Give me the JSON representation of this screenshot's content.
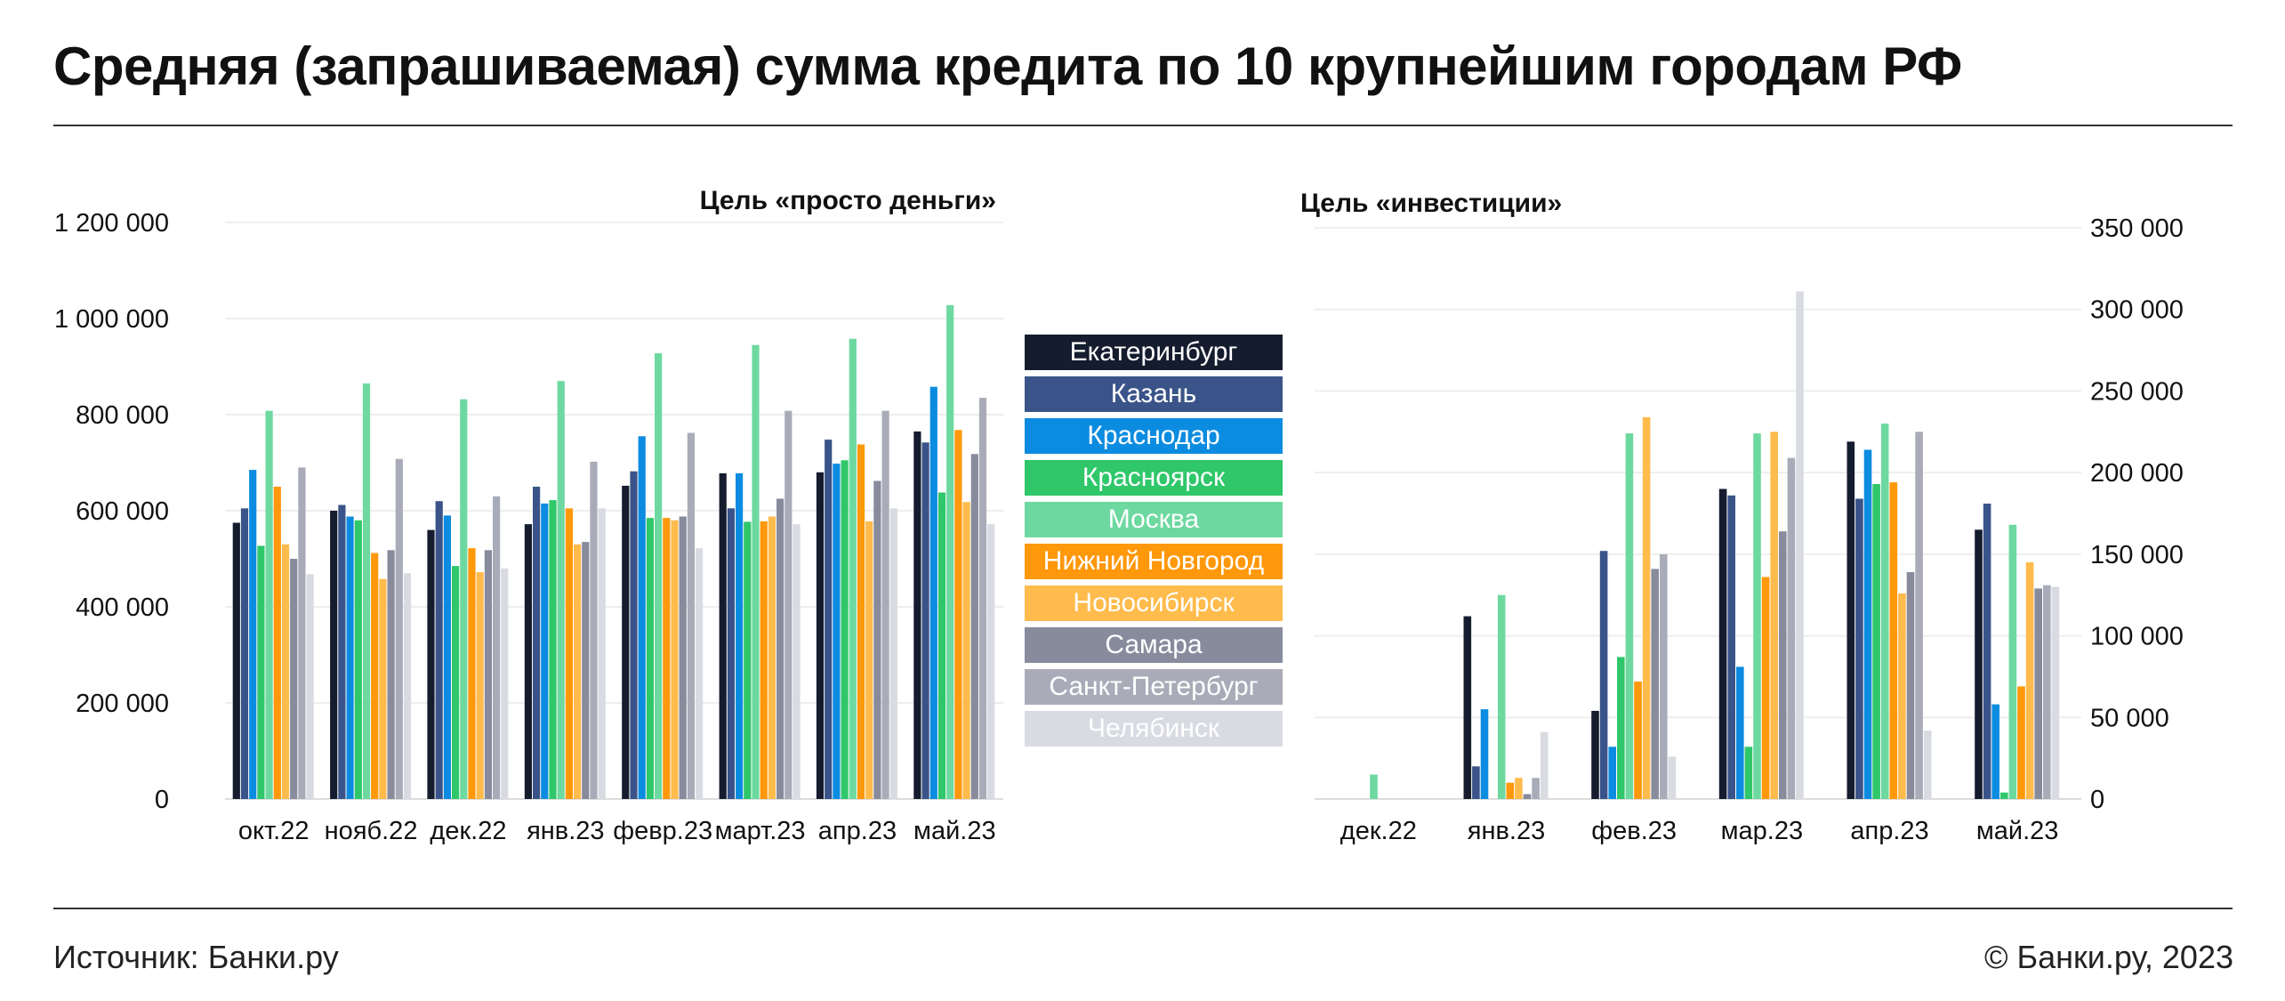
{
  "title": "Средняя (запрашиваемая) сумма кредита по 10 крупнейшим городам РФ",
  "source": "Источник: Банки.ру",
  "copyright": "© Банки.ру, 2023",
  "legend": [
    {
      "name": "Екатеринбург",
      "color": "#141c2e"
    },
    {
      "name": "Казань",
      "color": "#3a5489"
    },
    {
      "name": "Краснодар",
      "color": "#0c8ce0"
    },
    {
      "name": "Красноярск",
      "color": "#2fc76a"
    },
    {
      "name": "Москва",
      "color": "#6dd9a0"
    },
    {
      "name": "Нижний Новгород",
      "color": "#ff980a"
    },
    {
      "name": "Новосибирск",
      "color": "#ffbb4c"
    },
    {
      "name": "Самара",
      "color": "#878b9c"
    },
    {
      "name": "Санкт-Петербург",
      "color": "#a9acb8"
    },
    {
      "name": "Челябинск",
      "color": "#d9dbe2"
    }
  ],
  "chart_data": [
    {
      "type": "bar",
      "title": "Цель «просто деньги»",
      "categories": [
        "окт.22",
        "нояб.22",
        "дек.22",
        "янв.23",
        "февр.23",
        "март.23",
        "апр.23",
        "май.23"
      ],
      "ylim": [
        0,
        1200000
      ],
      "yticks": [
        "0",
        "200 000",
        "400 000",
        "600 000",
        "800 000",
        "1 000 000",
        "1 200 000"
      ],
      "grid": true,
      "series": [
        {
          "name": "Екатеринбург",
          "values": [
            575000,
            600000,
            560000,
            572000,
            652000,
            678000,
            680000,
            765000
          ]
        },
        {
          "name": "Казань",
          "values": [
            605000,
            612000,
            620000,
            650000,
            682000,
            605000,
            748000,
            742000
          ]
        },
        {
          "name": "Краснодар",
          "values": [
            685000,
            588000,
            590000,
            615000,
            755000,
            678000,
            698000,
            858000
          ]
        },
        {
          "name": "Красноярск",
          "values": [
            527000,
            580000,
            485000,
            622000,
            585000,
            577000,
            705000,
            638000
          ]
        },
        {
          "name": "Москва",
          "values": [
            808000,
            865000,
            832000,
            870000,
            928000,
            945000,
            958000,
            1028000
          ]
        },
        {
          "name": "Нижний Новгород",
          "values": [
            650000,
            512000,
            522000,
            605000,
            585000,
            578000,
            738000,
            768000
          ]
        },
        {
          "name": "Новосибирск",
          "values": [
            530000,
            458000,
            472000,
            530000,
            580000,
            588000,
            578000,
            618000
          ]
        },
        {
          "name": "Самара",
          "values": [
            500000,
            518000,
            518000,
            535000,
            588000,
            625000,
            662000,
            718000
          ]
        },
        {
          "name": "Санкт-Петербург",
          "values": [
            690000,
            708000,
            630000,
            702000,
            762000,
            808000,
            808000,
            835000
          ]
        },
        {
          "name": "Челябинск",
          "values": [
            468000,
            470000,
            480000,
            605000,
            522000,
            572000,
            605000,
            572000
          ]
        }
      ]
    },
    {
      "type": "bar",
      "title": "Цель «инвестиции»",
      "categories": [
        "дек.22",
        "янв.23",
        "фев.23",
        "мар.23",
        "апр.23",
        "май.23"
      ],
      "ylim": [
        0,
        350000
      ],
      "yticks": [
        "0",
        "50 000",
        "100 000",
        "150 000",
        "200 000",
        "250 000",
        "300 000",
        "350 000"
      ],
      "grid": true,
      "series": [
        {
          "name": "Екатеринбург",
          "values": [
            0,
            112000,
            54000,
            190000,
            219000,
            165000
          ]
        },
        {
          "name": "Казань",
          "values": [
            0,
            20000,
            152000,
            186000,
            184000,
            181000
          ]
        },
        {
          "name": "Краснодар",
          "values": [
            0,
            55000,
            32000,
            81000,
            214000,
            58000
          ]
        },
        {
          "name": "Красноярск",
          "values": [
            0,
            0,
            87000,
            32000,
            193000,
            4000
          ]
        },
        {
          "name": "Москва",
          "values": [
            15000,
            125000,
            224000,
            224000,
            230000,
            168000
          ]
        },
        {
          "name": "Нижний Новгород",
          "values": [
            0,
            10000,
            72000,
            136000,
            194000,
            69000
          ]
        },
        {
          "name": "Новосибирск",
          "values": [
            0,
            13000,
            234000,
            225000,
            126000,
            145000
          ]
        },
        {
          "name": "Самара",
          "values": [
            0,
            3000,
            141000,
            164000,
            139000,
            129000
          ]
        },
        {
          "name": "Санкт-Петербург",
          "values": [
            0,
            13000,
            150000,
            209000,
            225000,
            131000
          ]
        },
        {
          "name": "Челябинск",
          "values": [
            0,
            41000,
            26000,
            311000,
            42000,
            130000
          ]
        }
      ]
    }
  ]
}
